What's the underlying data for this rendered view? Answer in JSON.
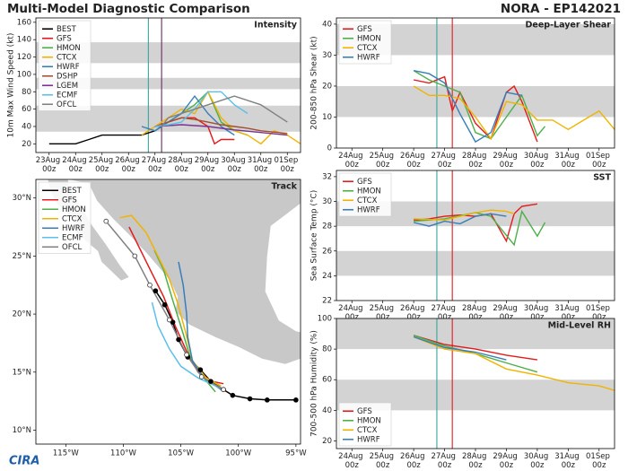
{
  "header": {
    "title": "Multi-Model Diagnostic Comparison",
    "storm": "NORA - EP142021"
  },
  "footer": {
    "logo": "CIRA"
  },
  "chart_data": [
    {
      "type": "line",
      "title": "Intensity",
      "ylabel": "10m Max Wind Speed (kt)",
      "xlim": [
        "22Aug 12z",
        "01Sep 12z"
      ],
      "xticks": [
        "23Aug 00z",
        "24Aug 00z",
        "25Aug 00z",
        "26Aug 00z",
        "27Aug 00z",
        "28Aug 00z",
        "29Aug 00z",
        "30Aug 00z",
        "31Aug 00z",
        "01Sep 00z"
      ],
      "ylim": [
        10,
        165
      ],
      "yticks": [
        20,
        40,
        60,
        80,
        100,
        120,
        140,
        160
      ],
      "bands": [
        [
          34,
          64
        ],
        [
          83,
          96
        ],
        [
          113,
          137
        ]
      ],
      "band_color": "#d3d3d3",
      "vlines": [
        {
          "x": "26Aug 18z",
          "color": "#3aa59b"
        },
        {
          "x": "27Aug 06z",
          "color": "#6b2a5a"
        }
      ],
      "legend": "upper left",
      "series": [
        {
          "name": "BEST",
          "color": "#000000",
          "x": [
            "23Aug 00z",
            "23Aug 12z",
            "24Aug 00z",
            "24Aug 12z",
            "25Aug 00z",
            "25Aug 12z",
            "26Aug 00z",
            "26Aug 12z",
            "27Aug 00z",
            "27Aug 06z"
          ],
          "values": [
            20,
            20,
            20,
            25,
            30,
            30,
            30,
            30,
            35,
            40
          ]
        },
        {
          "name": "GFS",
          "color": "#e41a1c",
          "x": [
            "27Aug 00z",
            "27Aug 12z",
            "28Aug 00z",
            "28Aug 12z",
            "29Aug 00z",
            "29Aug 06z",
            "29Aug 12z",
            "30Aug 00z"
          ],
          "values": [
            40,
            45,
            50,
            50,
            40,
            20,
            25,
            25
          ]
        },
        {
          "name": "HMON",
          "color": "#4daf4a",
          "x": [
            "27Aug 00z",
            "27Aug 12z",
            "28Aug 00z",
            "28Aug 12z",
            "29Aug 00z",
            "29Aug 12z",
            "30Aug 00z",
            "30Aug 12z"
          ],
          "values": [
            35,
            45,
            55,
            65,
            80,
            45,
            35,
            30
          ]
        },
        {
          "name": "CTCX",
          "color": "#f0b400",
          "x": [
            "26Aug 12z",
            "27Aug 00z",
            "27Aug 12z",
            "28Aug 00z",
            "28Aug 12z",
            "29Aug 00z",
            "29Aug 12z",
            "30Aug 00z",
            "30Aug 12z",
            "31Aug 00z",
            "31Aug 12z",
            "01Sep 00z",
            "01Sep 12z"
          ],
          "values": [
            30,
            40,
            50,
            60,
            55,
            80,
            50,
            35,
            30,
            20,
            35,
            30,
            20
          ]
        },
        {
          "name": "HWRF",
          "color": "#377eb8",
          "x": [
            "26Aug 12z",
            "27Aug 00z",
            "27Aug 12z",
            "28Aug 00z",
            "28Aug 12z",
            "29Aug 00z",
            "29Aug 12z",
            "30Aug 00z"
          ],
          "values": [
            40,
            35,
            45,
            55,
            75,
            55,
            40,
            30
          ]
        },
        {
          "name": "DSHP",
          "color": "#a0522d",
          "x": [
            "27Aug 00z",
            "27Aug 12z",
            "28Aug 00z",
            "28Aug 12z",
            "29Aug 00z",
            "29Aug 12z",
            "30Aug 00z",
            "30Aug 12z",
            "31Aug 00z",
            "01Sep 00z"
          ],
          "values": [
            40,
            45,
            50,
            48,
            45,
            42,
            40,
            38,
            35,
            32
          ]
        },
        {
          "name": "LGEM",
          "color": "#7b3294",
          "x": [
            "27Aug 00z",
            "28Aug 00z",
            "29Aug 00z",
            "30Aug 00z",
            "31Aug 00z",
            "01Sep 00z"
          ],
          "values": [
            40,
            42,
            40,
            36,
            33,
            30
          ]
        },
        {
          "name": "ECMF",
          "color": "#5bc0eb",
          "x": [
            "27Aug 00z",
            "27Aug 12z",
            "28Aug 00z",
            "28Aug 12z",
            "29Aug 00z",
            "29Aug 12z",
            "30Aug 00z",
            "30Aug 12z"
          ],
          "values": [
            40,
            42,
            45,
            60,
            80,
            80,
            65,
            55
          ]
        },
        {
          "name": "OFCL",
          "color": "#808080",
          "x": [
            "27Aug 06z",
            "27Aug 12z",
            "28Aug 00z",
            "29Aug 00z",
            "30Aug 00z",
            "31Aug 00z",
            "01Sep 00z"
          ],
          "values": [
            40,
            50,
            55,
            65,
            75,
            65,
            45
          ]
        }
      ]
    },
    {
      "type": "track",
      "title": "Track",
      "xlim": [
        -117.6,
        -94.6
      ],
      "ylim": [
        8.8,
        31.6
      ],
      "xticks": [
        {
          "value": -115,
          "label": "115°W"
        },
        {
          "value": -110,
          "label": "110°W"
        },
        {
          "value": -105,
          "label": "105°W"
        },
        {
          "value": -100,
          "label": "100°W"
        },
        {
          "value": -95,
          "label": "95°W"
        }
      ],
      "yticks": [
        {
          "value": 10,
          "label": "10°N"
        },
        {
          "value": 15,
          "label": "15°N"
        },
        {
          "value": 20,
          "label": "20°N"
        },
        {
          "value": 25,
          "label": "25°N"
        },
        {
          "value": 30,
          "label": "30°N"
        }
      ],
      "legend": "upper left",
      "series": [
        {
          "name": "BEST",
          "color": "#000000",
          "marker": "filled",
          "lon": [
            -95,
            -97.5,
            -99,
            -100.5,
            -101.3,
            -102.4,
            -103.3,
            -104.4,
            -105.2,
            -105.7,
            -106.4,
            -107.2
          ],
          "lat": [
            12.6,
            12.6,
            12.7,
            13,
            13.5,
            14.2,
            15.2,
            16.3,
            17.8,
            19.3,
            20.8,
            22
          ]
        },
        {
          "name": "GFS",
          "color": "#e41a1c",
          "lon": [
            -101.3,
            -102.3,
            -103.5,
            -104.5,
            -105.5,
            -106.5,
            -107.5,
            -108.5,
            -109.5
          ],
          "lat": [
            14,
            14.2,
            15,
            16.8,
            19,
            21.5,
            23.5,
            25.5,
            27.5
          ]
        },
        {
          "name": "HMON",
          "color": "#4daf4a",
          "lon": [
            -102,
            -103,
            -104.2,
            -104.8,
            -105.8,
            -106.5,
            -107.3
          ],
          "lat": [
            13.3,
            14.5,
            16.3,
            18.3,
            21.5,
            23.8,
            25.5
          ]
        },
        {
          "name": "CTCX",
          "color": "#f0b400",
          "lon": [
            -101.5,
            -102.8,
            -104,
            -104.6,
            -105.3,
            -106,
            -107,
            -108,
            -109.3,
            -110.3
          ],
          "lat": [
            13.8,
            14.5,
            16,
            18.5,
            21,
            23,
            25,
            27,
            28.5,
            28.3
          ]
        },
        {
          "name": "HWRF",
          "color": "#377eb8",
          "lon": [
            -101.5,
            -103,
            -104,
            -104.4,
            -104.5,
            -104.8,
            -105.2
          ],
          "lat": [
            13.5,
            14.5,
            16,
            18,
            20,
            22.5,
            24.5
          ]
        },
        {
          "name": "ECMF",
          "color": "#5bc0eb",
          "lon": [
            -101.5,
            -103.5,
            -105,
            -106,
            -107,
            -107.5
          ],
          "lat": [
            13.6,
            14.5,
            15.5,
            17,
            19,
            21
          ]
        },
        {
          "name": "OFCL",
          "color": "#808080",
          "marker": "open",
          "lon": [
            -101.3,
            -103.2,
            -104.5,
            -106,
            -107.7,
            -109,
            -111.5
          ],
          "lat": [
            13.5,
            14.6,
            16.5,
            19.5,
            22.5,
            25,
            28
          ]
        }
      ]
    },
    {
      "type": "line",
      "title": "Deep-Layer Shear",
      "ylabel": "200-850 hPa Shear (kt)",
      "xlim": [
        "23Aug 12z",
        "01Sep 12z"
      ],
      "xticks": [
        "24Aug 00z",
        "25Aug 00z",
        "26Aug 00z",
        "27Aug 00z",
        "28Aug 00z",
        "29Aug 00z",
        "30Aug 00z",
        "31Aug 00z",
        "01Sep 00z"
      ],
      "ylim": [
        0,
        42
      ],
      "yticks": [
        0,
        10,
        20,
        30,
        40
      ],
      "bands": [
        [
          10,
          20
        ],
        [
          30,
          40
        ]
      ],
      "band_color": "#d3d3d3",
      "vlines": [
        {
          "x": "26Aug 18z",
          "color": "#3aa59b"
        },
        {
          "x": "27Aug 06z",
          "color": "#e41a1c"
        }
      ],
      "legend": "upper left",
      "series": [
        {
          "name": "GFS",
          "color": "#e41a1c",
          "x": [
            "26Aug 00z",
            "26Aug 12z",
            "27Aug 00z",
            "27Aug 06z",
            "27Aug 12z",
            "28Aug 00z",
            "28Aug 12z",
            "29Aug 00z",
            "29Aug 06z",
            "29Aug 12z",
            "30Aug 00z"
          ],
          "values": [
            22,
            21,
            23,
            12,
            18,
            8,
            3,
            18,
            20,
            15,
            2
          ]
        },
        {
          "name": "HMON",
          "color": "#4daf4a",
          "x": [
            "26Aug 00z",
            "26Aug 12z",
            "27Aug 00z",
            "27Aug 12z",
            "28Aug 00z",
            "28Aug 12z",
            "29Aug 00z",
            "29Aug 12z",
            "30Aug 00z",
            "30Aug 06z"
          ],
          "values": [
            25,
            22,
            20,
            18,
            5,
            3,
            10,
            17,
            4,
            7
          ]
        },
        {
          "name": "CTCX",
          "color": "#f0b400",
          "x": [
            "26Aug 00z",
            "26Aug 12z",
            "27Aug 00z",
            "27Aug 12z",
            "28Aug 00z",
            "28Aug 12z",
            "29Aug 00z",
            "29Aug 12z",
            "30Aug 00z",
            "30Aug 12z",
            "31Aug 00z",
            "31Aug 12z",
            "01Sep 00z",
            "01Sep 12z"
          ],
          "values": [
            20,
            17,
            17,
            16,
            10,
            3,
            15,
            14,
            9,
            9,
            6,
            9,
            12,
            6
          ]
        },
        {
          "name": "HWRF",
          "color": "#377eb8",
          "x": [
            "26Aug 00z",
            "26Aug 12z",
            "27Aug 00z",
            "27Aug 12z",
            "28Aug 00z",
            "28Aug 12z",
            "29Aug 00z",
            "29Aug 12z"
          ],
          "values": [
            25,
            24,
            21,
            11,
            2,
            5,
            18,
            17
          ]
        }
      ]
    },
    {
      "type": "line",
      "title": "SST",
      "ylabel": "Sea Surface Temp (°C)",
      "xlim": [
        "23Aug 12z",
        "01Sep 12z"
      ],
      "xticks": [
        "24Aug 00z",
        "25Aug 00z",
        "26Aug 00z",
        "27Aug 00z",
        "28Aug 00z",
        "29Aug 00z",
        "30Aug 00z",
        "31Aug 00z",
        "01Sep 00z"
      ],
      "ylim": [
        22,
        32.5
      ],
      "yticks": [
        22,
        24,
        26,
        28,
        30,
        32
      ],
      "bands": [
        [
          24,
          26
        ],
        [
          28,
          30
        ]
      ],
      "band_color": "#d3d3d3",
      "vlines": [
        {
          "x": "26Aug 18z",
          "color": "#3aa59b"
        },
        {
          "x": "27Aug 06z",
          "color": "#e41a1c"
        }
      ],
      "legend": "upper left",
      "series": [
        {
          "name": "GFS",
          "color": "#e41a1c",
          "x": [
            "26Aug 00z",
            "26Aug 12z",
            "27Aug 00z",
            "27Aug 12z",
            "28Aug 00z",
            "28Aug 12z",
            "29Aug 00z",
            "29Aug 06z",
            "29Aug 12z",
            "30Aug 00z"
          ],
          "values": [
            28.5,
            28.6,
            28.8,
            28.9,
            28.8,
            29.0,
            26.8,
            29.0,
            29.6,
            29.8
          ]
        },
        {
          "name": "HMON",
          "color": "#4daf4a",
          "x": [
            "26Aug 00z",
            "27Aug 00z",
            "28Aug 00z",
            "28Aug 12z",
            "29Aug 06z",
            "29Aug 12z",
            "30Aug 00z",
            "30Aug 06z"
          ],
          "values": [
            28.4,
            28.6,
            29.1,
            28.8,
            26.5,
            29.2,
            27.2,
            28.3
          ]
        },
        {
          "name": "CTCX",
          "color": "#f0b400",
          "x": [
            "26Aug 00z",
            "27Aug 00z",
            "28Aug 00z",
            "28Aug 12z",
            "29Aug 00z",
            "29Aug 06z"
          ],
          "values": [
            28.6,
            28.5,
            29.1,
            29.3,
            29.2,
            29.0
          ]
        },
        {
          "name": "HWRF",
          "color": "#377eb8",
          "x": [
            "26Aug 00z",
            "26Aug 12z",
            "27Aug 00z",
            "27Aug 12z",
            "28Aug 00z",
            "28Aug 12z",
            "29Aug 00z"
          ],
          "values": [
            28.3,
            28.0,
            28.4,
            28.2,
            28.8,
            29.0,
            28.8
          ]
        }
      ]
    },
    {
      "type": "line",
      "title": "Mid-Level RH",
      "ylabel": "700-500 hPa Humidity (%)",
      "xlim": [
        "23Aug 12z",
        "01Sep 12z"
      ],
      "xticks": [
        "24Aug 00z",
        "25Aug 00z",
        "26Aug 00z",
        "27Aug 00z",
        "28Aug 00z",
        "29Aug 00z",
        "30Aug 00z",
        "31Aug 00z",
        "01Sep 00z"
      ],
      "ylim": [
        15,
        100
      ],
      "yticks": [
        20,
        40,
        60,
        80,
        100
      ],
      "bands": [
        [
          40,
          60
        ],
        [
          80,
          100
        ]
      ],
      "band_color": "#d3d3d3",
      "vlines": [
        {
          "x": "26Aug 18z",
          "color": "#3aa59b"
        },
        {
          "x": "27Aug 06z",
          "color": "#e41a1c"
        }
      ],
      "legend": "lower left",
      "series": [
        {
          "name": "GFS",
          "color": "#e41a1c",
          "x": [
            "26Aug 00z",
            "27Aug 00z",
            "28Aug 00z",
            "29Aug 00z",
            "30Aug 00z"
          ],
          "values": [
            89,
            83,
            80,
            76,
            73
          ]
        },
        {
          "name": "HMON",
          "color": "#4daf4a",
          "x": [
            "26Aug 00z",
            "27Aug 00z",
            "28Aug 00z",
            "29Aug 00z",
            "30Aug 00z"
          ],
          "values": [
            89,
            82,
            77,
            71,
            65
          ]
        },
        {
          "name": "CTCX",
          "color": "#f0b400",
          "x": [
            "26Aug 00z",
            "27Aug 00z",
            "28Aug 00z",
            "29Aug 00z",
            "30Aug 00z",
            "31Aug 00z",
            "01Sep 00z",
            "01Sep 12z"
          ],
          "values": [
            88,
            80,
            77,
            67,
            63,
            58,
            56,
            53
          ]
        },
        {
          "name": "HWRF",
          "color": "#377eb8",
          "x": [
            "26Aug 00z",
            "27Aug 00z",
            "28Aug 00z",
            "29Aug 00z"
          ],
          "values": [
            88,
            81,
            78,
            73
          ]
        }
      ]
    }
  ]
}
